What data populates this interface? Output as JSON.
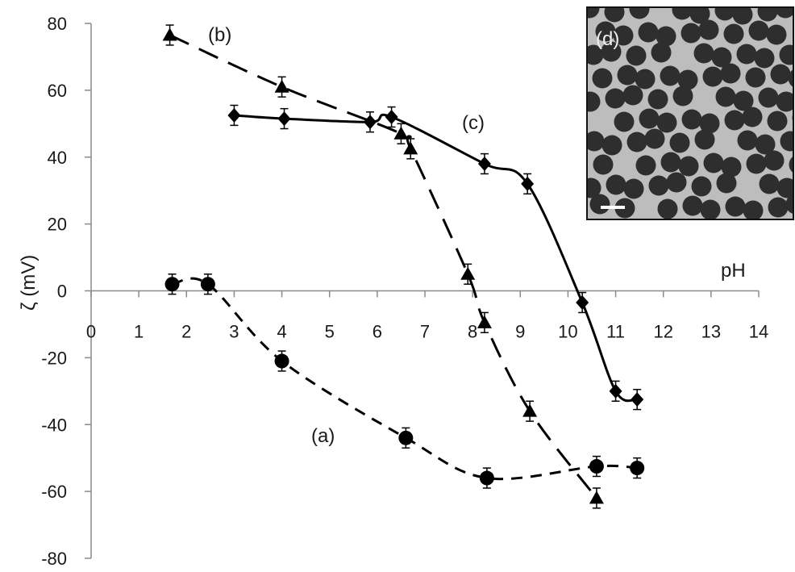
{
  "chart_data": {
    "type": "scatter",
    "xlabel": "pH",
    "ylabel": "ζ (mV)",
    "xlim": [
      0,
      14
    ],
    "ylim": [
      -80,
      80
    ],
    "x_ticks": [
      "0",
      "1",
      "2",
      "3",
      "4",
      "5",
      "6",
      "7",
      "8",
      "9",
      "10",
      "11",
      "12",
      "13",
      "14"
    ],
    "y_ticks": [
      "80",
      "60",
      "40",
      "20",
      "0",
      "-20",
      "-40",
      "-60",
      "-80"
    ],
    "grid": false,
    "series": [
      {
        "name": "(a)",
        "marker": "circle",
        "line": "short-dash",
        "x": [
          1.7,
          2.45,
          4.0,
          6.6,
          8.3,
          10.6,
          11.45
        ],
        "y": [
          2,
          2,
          -21,
          -44,
          -56,
          -52.5,
          -53
        ],
        "err": [
          3,
          3,
          3,
          3,
          3,
          3,
          3
        ]
      },
      {
        "name": "(b)",
        "marker": "triangle",
        "line": "long-dash",
        "x": [
          1.65,
          4.0,
          6.5,
          6.7,
          7.9,
          8.25,
          9.2,
          10.6
        ],
        "y": [
          76.5,
          61,
          47,
          42.5,
          5,
          -9.5,
          -36,
          -62
        ],
        "err": [
          3,
          3,
          3,
          3,
          3,
          3,
          3,
          3
        ]
      },
      {
        "name": "(c)",
        "marker": "diamond",
        "line": "solid",
        "x": [
          3.0,
          4.05,
          5.85,
          6.3,
          8.25,
          9.15,
          10.3,
          11.0,
          11.45
        ],
        "y": [
          52.5,
          51.5,
          50.5,
          52,
          38,
          32,
          -3.5,
          -30,
          -32.5
        ],
        "err": [
          3,
          3,
          3,
          3,
          3,
          3,
          3,
          3,
          3
        ]
      }
    ],
    "inset_label": "(d)"
  }
}
